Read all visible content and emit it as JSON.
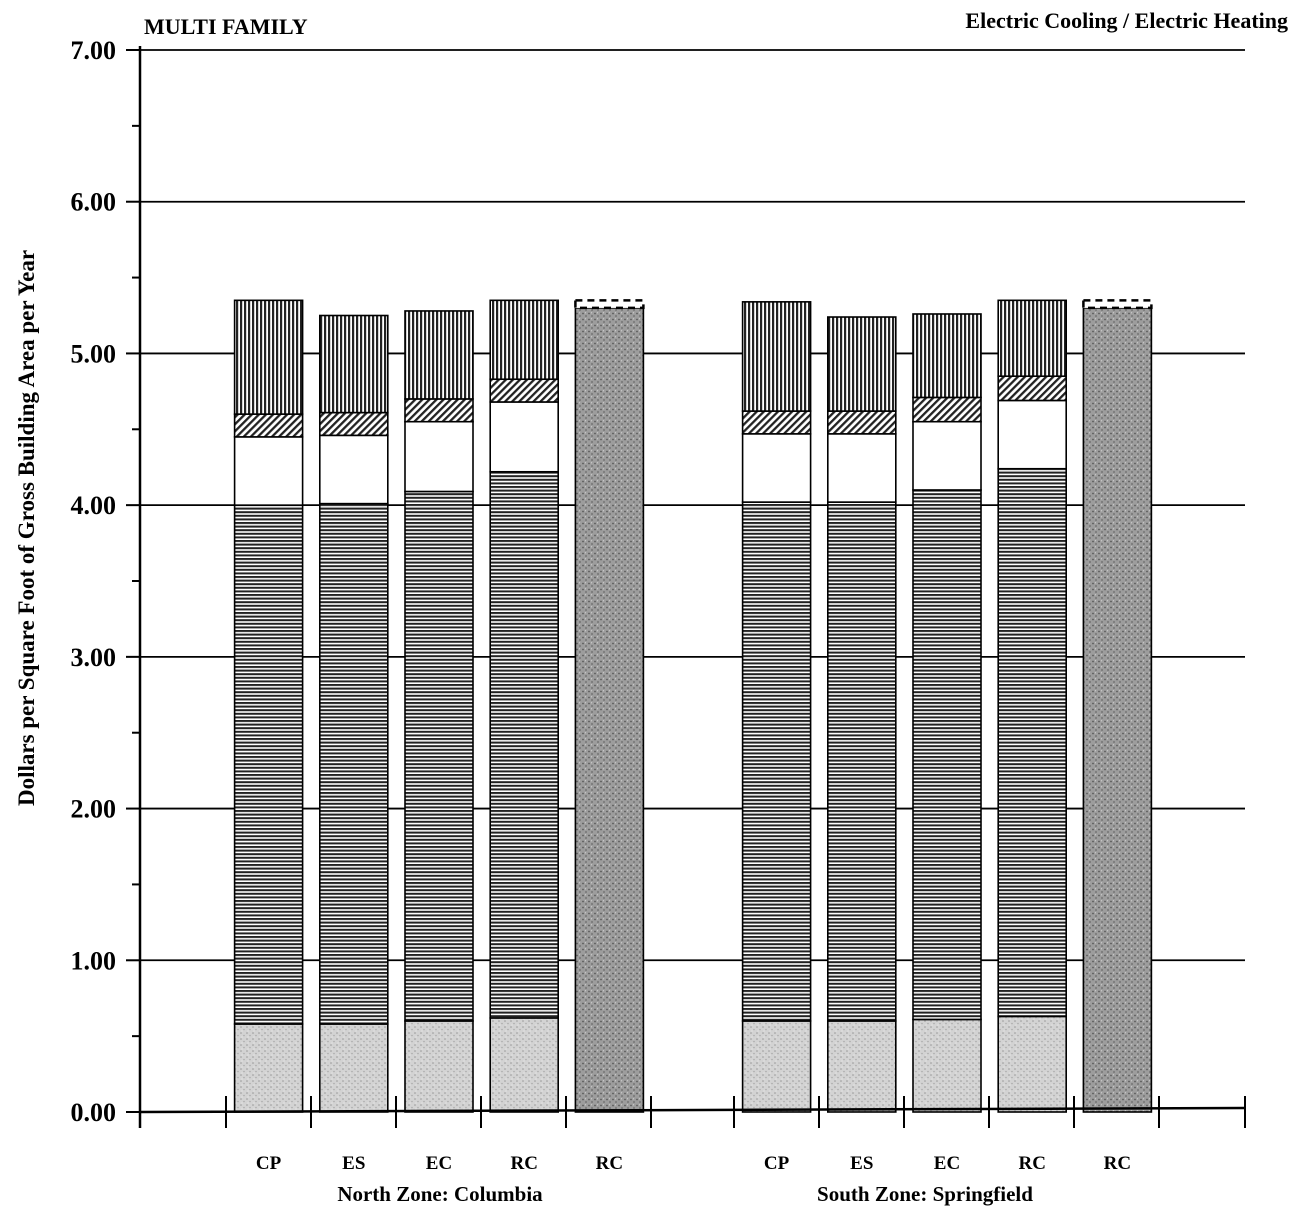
{
  "chart_data": {
    "type": "bar",
    "stacked": true,
    "title_left": "MULTI FAMILY",
    "title_right": "Electric Cooling / Electric Heating",
    "ylabel": "Dollars per Square Foot of Gross Building Area per Year",
    "ylim": [
      0,
      7
    ],
    "yticks": [
      "0.00",
      "1.00",
      "2.00",
      "3.00",
      "4.00",
      "5.00",
      "6.00",
      "7.00"
    ],
    "grid": true,
    "groups": [
      {
        "label": "North Zone: Columbia",
        "categories": [
          "CP",
          "ES",
          "EC",
          "RC",
          "RC"
        ],
        "segments": [
          [
            0.58,
            3.42,
            0.45,
            0.15,
            0.75
          ],
          [
            0.58,
            3.43,
            0.45,
            0.15,
            0.64
          ],
          [
            0.6,
            3.49,
            0.46,
            0.15,
            0.58
          ],
          [
            0.62,
            3.6,
            0.46,
            0.15,
            0.52
          ],
          [
            5.3,
            0.05
          ]
        ]
      },
      {
        "label": "South Zone: Springfield",
        "categories": [
          "CP",
          "ES",
          "EC",
          "RC",
          "RC"
        ],
        "segments": [
          [
            0.6,
            3.42,
            0.45,
            0.15,
            0.72
          ],
          [
            0.6,
            3.42,
            0.45,
            0.15,
            0.62
          ],
          [
            0.61,
            3.49,
            0.45,
            0.16,
            0.55
          ],
          [
            0.63,
            3.61,
            0.45,
            0.16,
            0.5
          ],
          [
            5.3,
            0.05
          ]
        ]
      }
    ],
    "segment_styles": [
      "light-stipple",
      "horizontal-hatch",
      "blank",
      "diagonal-hatch",
      "vertical-hatch"
    ],
    "single_segment_styles": [
      "dark-stipple",
      "dashed-outline"
    ]
  }
}
